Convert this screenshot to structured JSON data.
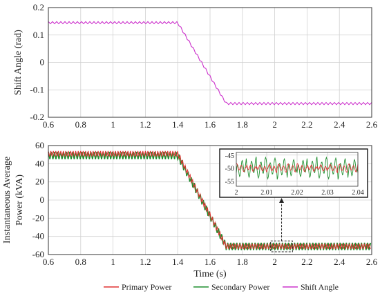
{
  "chart_data": [
    {
      "type": "line",
      "ylabel": "Shift Angle (rad)",
      "xlim": [
        0.6,
        2.6
      ],
      "ylim": [
        -0.2,
        0.2
      ],
      "xticks": [
        "0.6",
        "0.8",
        "1",
        "1.2",
        "1.4",
        "1.6",
        "1.8",
        "2",
        "2.2",
        "2.4",
        "2.6"
      ],
      "yticks": [
        "0.2",
        "0.1",
        "0",
        "-0.1",
        "-0.2"
      ],
      "grid": true,
      "series": [
        {
          "name": "Shift Angle",
          "color": "#cc33cc",
          "points": [
            [
              0.6,
              0.145
            ],
            [
              1.4,
              0.145
            ],
            [
              1.7,
              -0.15
            ],
            [
              2.6,
              -0.15
            ]
          ],
          "ripple": 0.004
        }
      ]
    },
    {
      "type": "line",
      "ylabel_lines": [
        "Instantaneous Average",
        "Power (kVA)"
      ],
      "xlabel": "Time (s)",
      "xlim": [
        0.6,
        2.6
      ],
      "ylim": [
        -60,
        60
      ],
      "xticks": [
        "0.6",
        "0.8",
        "1",
        "1.2",
        "1.4",
        "1.6",
        "1.8",
        "2",
        "2.2",
        "2.4",
        "2.6"
      ],
      "yticks": [
        "60",
        "40",
        "20",
        "0",
        "-20",
        "-40",
        "-60"
      ],
      "grid": true,
      "legend_position": "bottom",
      "series": [
        {
          "name": "Primary Power",
          "color": "#e03030",
          "points": [
            [
              0.6,
              51
            ],
            [
              1.4,
              51
            ],
            [
              1.7,
              -51
            ],
            [
              2.6,
              -51
            ]
          ],
          "ripple": 3
        },
        {
          "name": "Secondary Power",
          "color": "#1f8f2f",
          "points": [
            [
              0.6,
              49
            ],
            [
              1.4,
              49
            ],
            [
              1.7,
              -51
            ],
            [
              2.6,
              -51
            ]
          ],
          "ripple": 4
        }
      ],
      "inset": {
        "xlim": [
          2.0,
          2.04
        ],
        "ylim": [
          -57,
          -44
        ],
        "xticks": [
          "2",
          "2.01",
          "2.02",
          "2.03",
          "2.04"
        ],
        "yticks": [
          "-45",
          "-50",
          "-55"
        ],
        "series": [
          {
            "name": "Secondary Power",
            "color": "#1f8f2f",
            "mean": -50,
            "amplitude": 4.5
          },
          {
            "name": "Primary Power",
            "color": "#e03030",
            "mean": -50,
            "amplitude": 1.8
          }
        ]
      }
    }
  ],
  "legend": [
    {
      "label": "Primary Power",
      "color": "#e03030"
    },
    {
      "label": "Secondary Power",
      "color": "#1f8f2f"
    },
    {
      "label": "Shift Angle",
      "color": "#cc33cc"
    }
  ]
}
